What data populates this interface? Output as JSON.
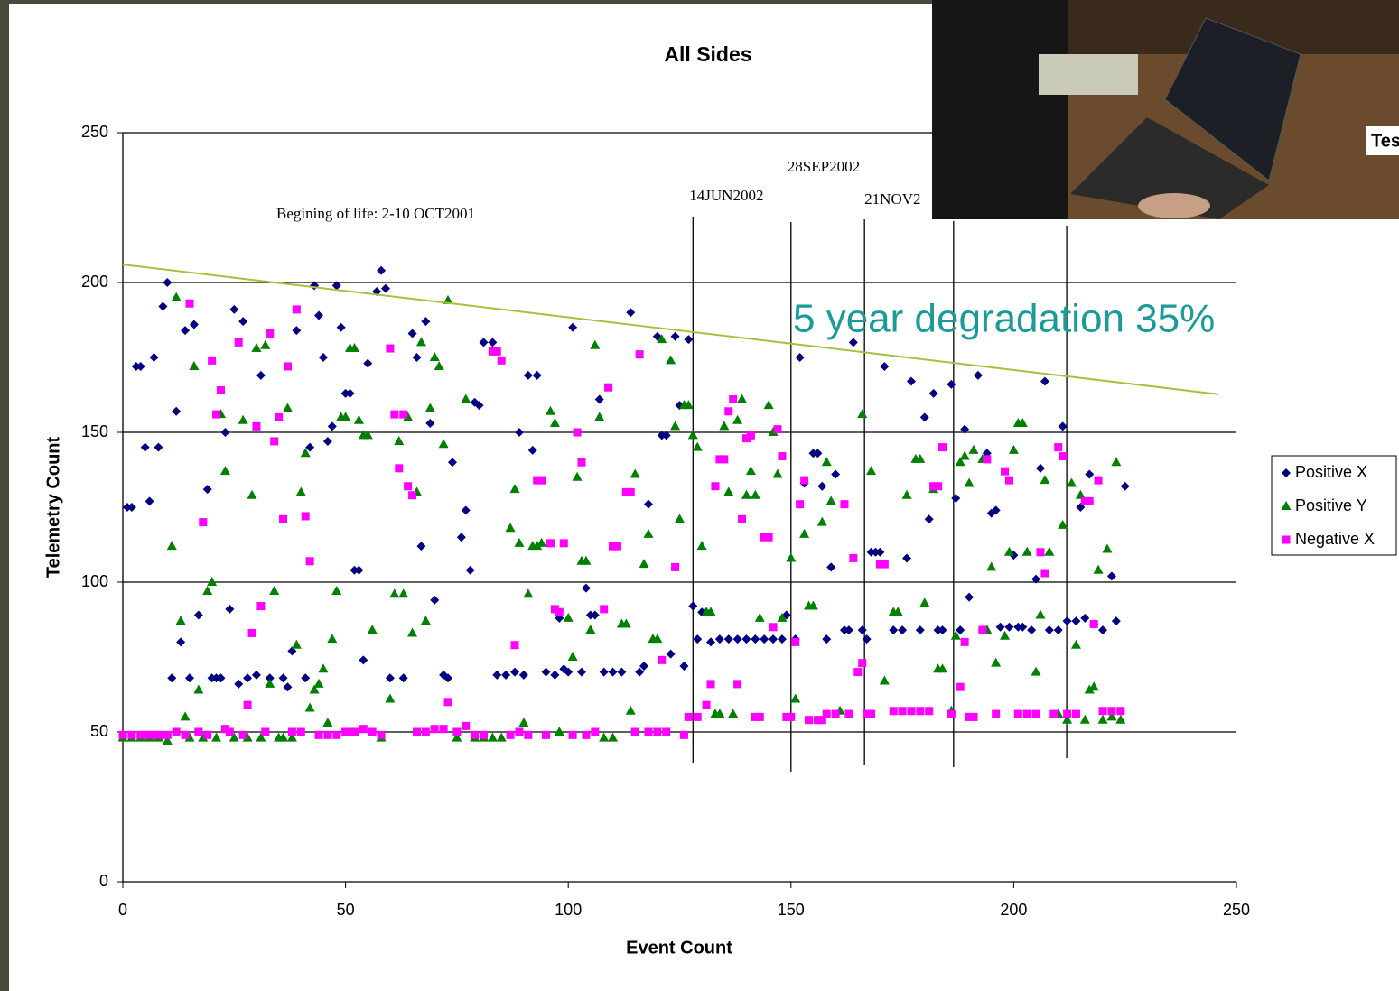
{
  "chart_data": {
    "type": "scatter",
    "title": "All Sides",
    "xlabel": "Event Count",
    "ylabel": "Telemetry Count",
    "xlim": [
      0,
      250
    ],
    "ylim": [
      0,
      250
    ],
    "xticks": [
      0,
      50,
      100,
      150,
      200,
      250
    ],
    "yticks": [
      0,
      50,
      100,
      150,
      200,
      250
    ],
    "grid": true,
    "legend": "right",
    "series": [
      {
        "name": "Positive X",
        "color": "#000080",
        "marker": "diamond",
        "x": [
          1,
          2,
          3,
          4,
          5,
          6,
          7,
          8,
          9,
          10,
          11,
          12,
          13,
          14,
          15,
          16,
          17,
          19,
          20,
          21,
          22,
          23,
          24,
          25,
          26,
          27,
          28,
          30,
          31,
          33,
          36,
          37,
          38,
          39,
          41,
          42,
          43,
          44,
          45,
          46,
          47,
          48,
          49,
          50,
          51,
          52,
          53,
          54,
          55,
          57,
          58,
          59,
          60,
          63,
          65,
          66,
          67,
          68,
          69,
          70,
          72,
          73,
          74,
          76,
          77,
          78,
          79,
          80,
          81,
          83,
          84,
          86,
          88,
          89,
          90,
          91,
          92,
          93,
          95,
          97,
          98,
          99,
          100,
          101,
          103,
          104,
          105,
          106,
          107,
          108,
          110,
          112,
          114,
          116,
          117,
          118,
          120,
          121,
          122,
          123,
          124,
          125,
          126,
          127,
          128,
          129,
          130,
          131,
          132,
          134,
          136,
          138,
          140,
          142,
          144,
          146,
          148,
          149,
          151,
          152,
          153,
          155,
          156,
          157,
          158,
          159,
          160,
          162,
          163,
          164,
          166,
          167,
          168,
          169,
          170,
          171,
          173,
          175,
          176,
          177,
          179,
          180,
          181,
          182,
          183,
          184,
          186,
          187,
          188,
          189,
          190,
          192,
          193,
          194,
          195,
          196,
          197,
          199,
          200,
          201,
          202,
          204,
          205,
          206,
          207,
          208,
          210,
          211,
          212,
          214,
          215,
          216,
          217,
          218,
          220,
          222,
          223,
          225
        ],
        "y": [
          125,
          125,
          172,
          172,
          145,
          127,
          175,
          145,
          192,
          200,
          68,
          157,
          80,
          184,
          68,
          186,
          89,
          131,
          68,
          68,
          68,
          150,
          91,
          191,
          66,
          187,
          68,
          69,
          169,
          68,
          68,
          65,
          77,
          184,
          68,
          145,
          199,
          189,
          175,
          147,
          152,
          199,
          185,
          163,
          163,
          104,
          104,
          74,
          173,
          197,
          204,
          198,
          68,
          68,
          183,
          175,
          112,
          187,
          153,
          94,
          69,
          68,
          140,
          115,
          124,
          104,
          160,
          159,
          180,
          180,
          69,
          69,
          70,
          150,
          69,
          169,
          144,
          169,
          70,
          69,
          88,
          71,
          70,
          185,
          70,
          98,
          89,
          89,
          161,
          70,
          70,
          70,
          190,
          70,
          72,
          126,
          182,
          149,
          149,
          76,
          182,
          159,
          72,
          181,
          92,
          81,
          90,
          90,
          80,
          81,
          81,
          81,
          81,
          81,
          81,
          81,
          81,
          89,
          81,
          175,
          133,
          143,
          143,
          132,
          81,
          105,
          136,
          84,
          84,
          180,
          84,
          81,
          110,
          110,
          110,
          172,
          84,
          84,
          108,
          167,
          84,
          155,
          121,
          163,
          84,
          84,
          166,
          128,
          84,
          151,
          95,
          169,
          84,
          143,
          123,
          124,
          85,
          85,
          109,
          85,
          85,
          84,
          101,
          138,
          167,
          84,
          84,
          152,
          87,
          87,
          125,
          88,
          136,
          86,
          84,
          102,
          87,
          132
        ]
      },
      {
        "name": "Positive Y",
        "color": "#008000",
        "marker": "triangle",
        "x": [
          0,
          2,
          4,
          6,
          8,
          10,
          11,
          12,
          13,
          14,
          15,
          16,
          17,
          18,
          19,
          20,
          21,
          22,
          23,
          25,
          27,
          28,
          29,
          30,
          31,
          32,
          33,
          34,
          35,
          36,
          37,
          38,
          39,
          40,
          41,
          42,
          43,
          44,
          45,
          46,
          47,
          48,
          49,
          50,
          51,
          52,
          53,
          54,
          55,
          56,
          58,
          60,
          61,
          62,
          63,
          64,
          65,
          66,
          67,
          68,
          69,
          70,
          71,
          72,
          73,
          75,
          77,
          79,
          81,
          83,
          85,
          87,
          88,
          89,
          90,
          91,
          92,
          93,
          94,
          96,
          97,
          98,
          100,
          101,
          102,
          103,
          104,
          105,
          106,
          107,
          108,
          110,
          112,
          113,
          114,
          115,
          117,
          118,
          119,
          120,
          121,
          123,
          124,
          125,
          126,
          127,
          128,
          129,
          130,
          131,
          132,
          133,
          134,
          135,
          136,
          137,
          138,
          139,
          140,
          141,
          142,
          143,
          145,
          146,
          147,
          148,
          150,
          151,
          153,
          154,
          155,
          157,
          158,
          159,
          161,
          166,
          168,
          171,
          173,
          174,
          176,
          178,
          179,
          180,
          182,
          183,
          184,
          186,
          187,
          188,
          189,
          190,
          191,
          193,
          194,
          195,
          196,
          198,
          199,
          200,
          201,
          202,
          203,
          205,
          206,
          207,
          208,
          210,
          211,
          212,
          213,
          214,
          215,
          216,
          217,
          218,
          219,
          220,
          221,
          222,
          223,
          224
        ],
        "y": [
          48,
          48,
          48,
          48,
          48,
          47,
          112,
          195,
          87,
          55,
          48,
          172,
          64,
          48,
          97,
          100,
          48,
          156,
          137,
          48,
          154,
          48,
          129,
          178,
          48,
          179,
          66,
          97,
          48,
          48,
          158,
          48,
          79,
          130,
          143,
          58,
          64,
          66,
          71,
          53,
          81,
          97,
          155,
          155,
          178,
          178,
          154,
          149,
          149,
          84,
          48,
          61,
          96,
          147,
          96,
          155,
          83,
          130,
          180,
          87,
          158,
          175,
          172,
          146,
          194,
          48,
          161,
          48,
          48,
          48,
          48,
          118,
          131,
          113,
          53,
          96,
          112,
          112,
          113,
          157,
          153,
          50,
          88,
          75,
          135,
          107,
          107,
          84,
          179,
          155,
          48,
          48,
          86,
          86,
          57,
          136,
          106,
          116,
          81,
          81,
          181,
          174,
          152,
          121,
          159,
          159,
          149,
          145,
          112,
          90,
          90,
          56,
          56,
          152,
          130,
          56,
          154,
          161,
          129,
          137,
          129,
          88,
          159,
          150,
          136,
          88,
          108,
          61,
          116,
          92,
          92,
          120,
          140,
          127,
          57,
          156,
          137,
          67,
          90,
          90,
          129,
          141,
          141,
          93,
          131,
          71,
          71,
          57,
          82,
          140,
          142,
          133,
          144,
          141,
          84,
          105,
          73,
          82,
          110,
          144,
          153,
          153,
          110,
          70,
          89,
          134,
          110,
          56,
          119,
          54,
          133,
          79,
          129,
          54,
          64,
          65,
          104,
          54,
          111,
          55,
          140,
          54
        ]
      },
      {
        "name": "Negative X",
        "color": "#ff00ff",
        "marker": "square",
        "x": [
          0,
          2,
          4,
          6,
          8,
          10,
          12,
          14,
          15,
          17,
          18,
          19,
          20,
          21,
          22,
          23,
          24,
          26,
          27,
          28,
          29,
          30,
          31,
          32,
          33,
          34,
          35,
          36,
          37,
          38,
          39,
          40,
          41,
          42,
          44,
          46,
          48,
          50,
          52,
          54,
          56,
          58,
          60,
          61,
          62,
          63,
          64,
          65,
          66,
          68,
          70,
          72,
          73,
          75,
          77,
          79,
          81,
          83,
          84,
          85,
          87,
          88,
          89,
          91,
          93,
          94,
          95,
          96,
          97,
          98,
          99,
          101,
          102,
          103,
          104,
          106,
          108,
          109,
          110,
          111,
          113,
          114,
          115,
          116,
          118,
          120,
          121,
          122,
          124,
          126,
          127,
          129,
          131,
          132,
          133,
          134,
          135,
          136,
          137,
          138,
          139,
          140,
          141,
          142,
          143,
          144,
          145,
          146,
          147,
          148,
          149,
          150,
          151,
          152,
          153,
          154,
          156,
          157,
          158,
          160,
          162,
          163,
          164,
          165,
          166,
          167,
          168,
          170,
          171,
          173,
          175,
          177,
          179,
          181,
          182,
          183,
          184,
          186,
          188,
          189,
          190,
          191,
          193,
          194,
          196,
          198,
          199,
          201,
          203,
          205,
          206,
          207,
          209,
          210,
          211,
          212,
          214,
          216,
          217,
          218,
          219,
          220,
          222,
          224
        ],
        "y": [
          49,
          49,
          49,
          49,
          49,
          49,
          50,
          49,
          193,
          50,
          120,
          49,
          174,
          156,
          164,
          51,
          50,
          180,
          49,
          59,
          83,
          152,
          92,
          50,
          183,
          147,
          155,
          121,
          172,
          50,
          191,
          50,
          122,
          107,
          49,
          49,
          49,
          50,
          50,
          51,
          50,
          49,
          178,
          156,
          138,
          156,
          132,
          129,
          50,
          50,
          51,
          51,
          60,
          50,
          52,
          49,
          49,
          177,
          177,
          174,
          49,
          79,
          50,
          49,
          134,
          134,
          49,
          113,
          91,
          90,
          113,
          49,
          150,
          140,
          49,
          50,
          91,
          165,
          112,
          112,
          130,
          130,
          50,
          176,
          50,
          50,
          74,
          50,
          105,
          49,
          55,
          55,
          59,
          66,
          132,
          141,
          141,
          157,
          161,
          66,
          121,
          148,
          149,
          55,
          55,
          115,
          115,
          85,
          151,
          142,
          55,
          55,
          80,
          126,
          134,
          54,
          54,
          54,
          56,
          56,
          126,
          56,
          108,
          70,
          73,
          56,
          56,
          106,
          106,
          57,
          57,
          57,
          57,
          57,
          132,
          132,
          145,
          56,
          65,
          80,
          55,
          55,
          84,
          141,
          56,
          137,
          134,
          56,
          56,
          56,
          110,
          103,
          56,
          145,
          142,
          56,
          56,
          127,
          127,
          86,
          134,
          57,
          57,
          57
        ]
      }
    ],
    "trendline": {
      "color": "#a8c040",
      "x": [
        0,
        246
      ],
      "y": [
        206,
        162.7
      ]
    },
    "event_lines": [
      128,
      150,
      166.5,
      186.5,
      211.9
    ],
    "event_labels": [
      "14JUN2002",
      "28SEP2002",
      "21NOV2"
    ],
    "life_label": "Begining of life: 2-10 OCT2001",
    "degradation_label": "5 year degradation 35%"
  },
  "photo_caption": "Tes"
}
